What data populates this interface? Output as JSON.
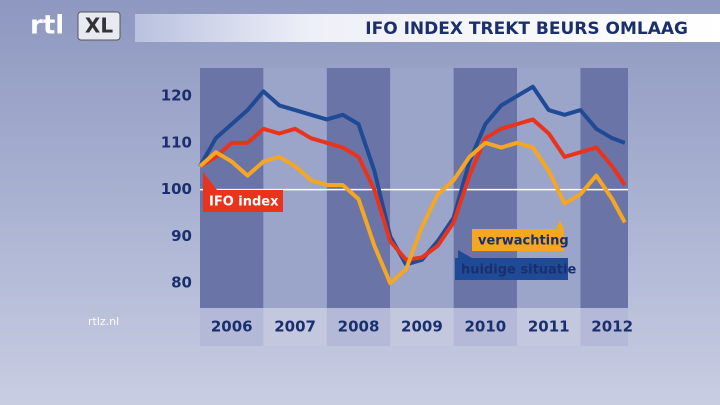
{
  "chart_data": {
    "type": "line",
    "title": "IFO INDEX TREKT BEURS OMLAAG",
    "logo": "rtl",
    "logo_badge": "XL",
    "source": "rtlz.nl",
    "x": [
      2006,
      2006.25,
      2006.5,
      2006.75,
      2007,
      2007.25,
      2007.5,
      2007.75,
      2008,
      2008.25,
      2008.5,
      2008.75,
      2009,
      2009.25,
      2009.5,
      2009.75,
      2010,
      2010.25,
      2010.5,
      2010.75,
      2011,
      2011.25,
      2011.5,
      2011.75,
      2012,
      2012.25,
      2012.5,
      2012.7
    ],
    "series": [
      {
        "name": "huidige situatie",
        "color": "#1f4a96",
        "values": [
          105,
          111,
          114,
          117,
          121,
          118,
          117,
          116,
          115,
          116,
          114,
          104,
          90,
          84,
          85,
          89,
          94,
          106,
          114,
          118,
          120,
          122,
          117,
          116,
          117,
          113,
          111,
          110
        ]
      },
      {
        "name": "IFO index",
        "color": "#e8341c",
        "values": [
          105,
          107,
          110,
          110,
          113,
          112,
          113,
          111,
          110,
          109,
          107,
          100,
          89,
          85,
          85.5,
          88,
          93,
          103,
          111,
          113,
          114,
          115,
          112,
          107,
          108,
          109,
          105,
          101
        ]
      },
      {
        "name": "verwachting",
        "color": "#f5a623",
        "values": [
          105,
          108,
          106,
          103,
          106,
          107,
          105,
          102,
          101,
          101,
          98,
          88,
          80,
          83,
          92,
          99,
          102,
          107,
          110,
          109,
          110,
          109,
          104,
          97,
          99,
          103,
          98,
          93
        ]
      }
    ],
    "xlim": [
      2006,
      2012.75
    ],
    "xticks": [
      {
        "value": 2006.5,
        "label": "2006"
      },
      {
        "value": 2007.5,
        "label": "2007"
      },
      {
        "value": 2008.5,
        "label": "2008"
      },
      {
        "value": 2009.5,
        "label": "2009"
      },
      {
        "value": 2010.5,
        "label": "2010"
      },
      {
        "value": 2011.5,
        "label": "2011"
      },
      {
        "value": 2012.5,
        "label": "2012"
      }
    ],
    "ylim": [
      74.7,
      126
    ],
    "yticks": [
      80,
      90,
      100,
      110,
      120
    ],
    "reference_line": 100
  }
}
